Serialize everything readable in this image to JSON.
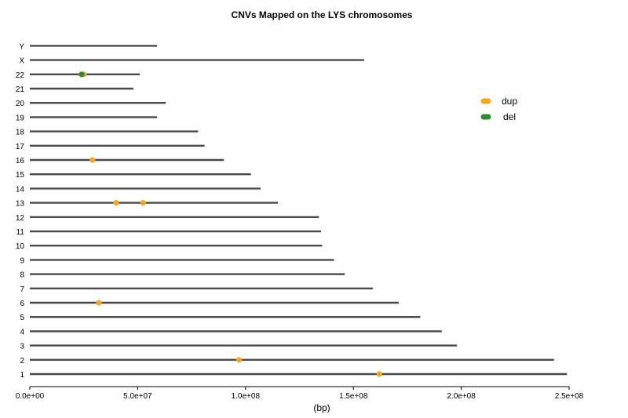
{
  "chart_data": {
    "type": "scatter",
    "title": "CNVs Mapped on the LYS chromosomes",
    "xlabel": "(bp)",
    "ylabel": "",
    "xlim": [
      0,
      250000000
    ],
    "x_ticks": [
      "0.0e+00",
      "5.0e+07",
      "1.0e+08",
      "1.5e+08",
      "2.0e+08",
      "2.5e+08"
    ],
    "x_tick_values": [
      0,
      50000000,
      100000000,
      150000000,
      200000000,
      250000000
    ],
    "grid": false,
    "legend_position": "right",
    "chromosomes": [
      {
        "name": "1",
        "length": 249000000
      },
      {
        "name": "2",
        "length": 243000000
      },
      {
        "name": "3",
        "length": 198000000
      },
      {
        "name": "4",
        "length": 191000000
      },
      {
        "name": "5",
        "length": 181000000
      },
      {
        "name": "6",
        "length": 171000000
      },
      {
        "name": "7",
        "length": 159000000
      },
      {
        "name": "8",
        "length": 146000000
      },
      {
        "name": "9",
        "length": 141000000
      },
      {
        "name": "10",
        "length": 135500000
      },
      {
        "name": "11",
        "length": 135000000
      },
      {
        "name": "12",
        "length": 134000000
      },
      {
        "name": "13",
        "length": 115000000
      },
      {
        "name": "14",
        "length": 107000000
      },
      {
        "name": "15",
        "length": 102500000
      },
      {
        "name": "16",
        "length": 90000000
      },
      {
        "name": "17",
        "length": 81000000
      },
      {
        "name": "18",
        "length": 78000000
      },
      {
        "name": "19",
        "length": 59000000
      },
      {
        "name": "20",
        "length": 63000000
      },
      {
        "name": "21",
        "length": 48000000
      },
      {
        "name": "22",
        "length": 51000000
      },
      {
        "name": "X",
        "length": 155000000
      },
      {
        "name": "Y",
        "length": 59000000
      }
    ],
    "series": [
      {
        "name": "dup",
        "color": "#f5a623",
        "points": [
          {
            "chrom": "1",
            "x": 162000000
          },
          {
            "chrom": "2",
            "x": 97000000
          },
          {
            "chrom": "6",
            "x": 32000000
          },
          {
            "chrom": "13",
            "x": 40000000
          },
          {
            "chrom": "13",
            "x": 52500000
          },
          {
            "chrom": "16",
            "x": 29000000
          },
          {
            "chrom": "22",
            "x": 25000000
          }
        ]
      },
      {
        "name": "del",
        "color": "#2e8b2e",
        "points": [
          {
            "chrom": "22",
            "x": 24000000
          }
        ]
      }
    ]
  }
}
